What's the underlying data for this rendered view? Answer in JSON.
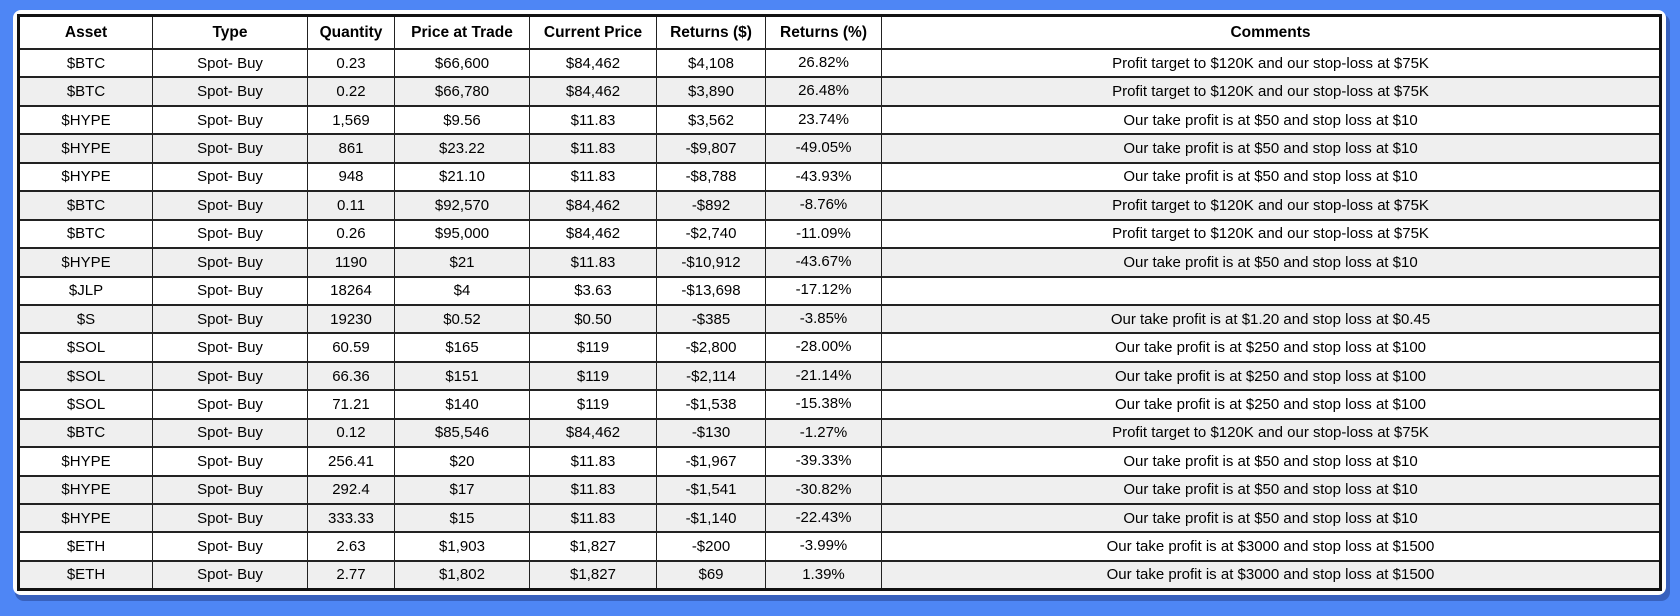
{
  "colors": {
    "frame_blue": "#4e86f5",
    "row_shade": "#efefef",
    "row_white": "#ffffff",
    "grid_line": "#222222",
    "text": "#000000"
  },
  "table": {
    "columns": [
      {
        "key": "asset",
        "label": "Asset"
      },
      {
        "key": "type",
        "label": "Type"
      },
      {
        "key": "quantity",
        "label": "Quantity"
      },
      {
        "key": "price_at_trade",
        "label": "Price at Trade"
      },
      {
        "key": "current_price",
        "label": "Current Price"
      },
      {
        "key": "returns_usd",
        "label": "Returns ($)"
      },
      {
        "key": "returns_pct",
        "label": "Returns (%)"
      },
      {
        "key": "comments",
        "label": "Comments"
      }
    ],
    "rows": [
      {
        "asset": "$BTC",
        "type": "Spot- Buy",
        "quantity": "0.23",
        "price_at_trade": "$66,600",
        "current_price": "$84,462",
        "returns_usd": "$4,108",
        "returns_pct": "26.82%",
        "comments": "Profit target to $120K and our stop-loss at $75K",
        "shaded": false
      },
      {
        "asset": "$BTC",
        "type": "Spot- Buy",
        "quantity": "0.22",
        "price_at_trade": "$66,780",
        "current_price": "$84,462",
        "returns_usd": "$3,890",
        "returns_pct": "26.48%",
        "comments": "Profit target to $120K and our stop-loss at $75K",
        "shaded": true
      },
      {
        "asset": "$HYPE",
        "type": "Spot- Buy",
        "quantity": "1,569",
        "price_at_trade": "$9.56",
        "current_price": "$11.83",
        "returns_usd": "$3,562",
        "returns_pct": "23.74%",
        "comments": "Our take profit is at $50 and stop loss at $10",
        "shaded": false
      },
      {
        "asset": "$HYPE",
        "type": "Spot- Buy",
        "quantity": "861",
        "price_at_trade": "$23.22",
        "current_price": "$11.83",
        "returns_usd": "-$9,807",
        "returns_pct": "-49.05%",
        "comments": "Our take profit is at $50 and stop loss at $10",
        "shaded": true
      },
      {
        "asset": "$HYPE",
        "type": "Spot- Buy",
        "quantity": "948",
        "price_at_trade": "$21.10",
        "current_price": "$11.83",
        "returns_usd": "-$8,788",
        "returns_pct": "-43.93%",
        "comments": "Our take profit is at $50 and stop loss at $10",
        "shaded": false
      },
      {
        "asset": "$BTC",
        "type": "Spot- Buy",
        "quantity": "0.11",
        "price_at_trade": "$92,570",
        "current_price": "$84,462",
        "returns_usd": "-$892",
        "returns_pct": "-8.76%",
        "comments": "Profit target to $120K and our stop-loss at $75K",
        "shaded": true
      },
      {
        "asset": "$BTC",
        "type": "Spot- Buy",
        "quantity": "0.26",
        "price_at_trade": "$95,000",
        "current_price": "$84,462",
        "returns_usd": "-$2,740",
        "returns_pct": "-11.09%",
        "comments": "Profit target to $120K and our stop-loss at $75K",
        "shaded": false
      },
      {
        "asset": "$HYPE",
        "type": "Spot- Buy",
        "quantity": "1190",
        "price_at_trade": "$21",
        "current_price": "$11.83",
        "returns_usd": "-$10,912",
        "returns_pct": "-43.67%",
        "comments": "Our take profit is at $50 and stop loss at $10",
        "shaded": true
      },
      {
        "asset": "$JLP",
        "type": "Spot- Buy",
        "quantity": "18264",
        "price_at_trade": "$4",
        "current_price": "$3.63",
        "returns_usd": "-$13,698",
        "returns_pct": "-17.12%",
        "comments": "",
        "shaded": false
      },
      {
        "asset": "$S",
        "type": "Spot- Buy",
        "quantity": "19230",
        "price_at_trade": "$0.52",
        "current_price": "$0.50",
        "returns_usd": "-$385",
        "returns_pct": "-3.85%",
        "comments": "Our take profit is at $1.20 and stop loss at $0.45",
        "shaded": true
      },
      {
        "asset": "$SOL",
        "type": "Spot- Buy",
        "quantity": "60.59",
        "price_at_trade": "$165",
        "current_price": "$119",
        "returns_usd": "-$2,800",
        "returns_pct": "-28.00%",
        "comments": "Our take profit is at $250 and stop loss at $100",
        "shaded": false
      },
      {
        "asset": "$SOL",
        "type": "Spot- Buy",
        "quantity": "66.36",
        "price_at_trade": "$151",
        "current_price": "$119",
        "returns_usd": "-$2,114",
        "returns_pct": "-21.14%",
        "comments": "Our take profit is at $250 and stop loss at $100",
        "shaded": true
      },
      {
        "asset": "$SOL",
        "type": "Spot- Buy",
        "quantity": "71.21",
        "price_at_trade": "$140",
        "current_price": "$119",
        "returns_usd": "-$1,538",
        "returns_pct": "-15.38%",
        "comments": "Our take profit is at $250 and stop loss at $100",
        "shaded": false
      },
      {
        "asset": "$BTC",
        "type": "Spot- Buy",
        "quantity": "0.12",
        "price_at_trade": "$85,546",
        "current_price": "$84,462",
        "returns_usd": "-$130",
        "returns_pct": "-1.27%",
        "comments": "Profit target to $120K and our stop-loss at $75K",
        "shaded": true
      },
      {
        "asset": "$HYPE",
        "type": "Spot- Buy",
        "quantity": "256.41",
        "price_at_trade": "$20",
        "current_price": "$11.83",
        "returns_usd": "-$1,967",
        "returns_pct": "-39.33%",
        "comments": "Our take profit is at $50 and stop loss at $10",
        "shaded": false
      },
      {
        "asset": "$HYPE",
        "type": "Spot- Buy",
        "quantity": "292.4",
        "price_at_trade": "$17",
        "current_price": "$11.83",
        "returns_usd": "-$1,541",
        "returns_pct": "-30.82%",
        "comments": "Our take profit is at $50 and stop loss at $10",
        "shaded": true
      },
      {
        "asset": "$HYPE",
        "type": "Spot- Buy",
        "quantity": "333.33",
        "price_at_trade": "$15",
        "current_price": "$11.83",
        "returns_usd": "-$1,140",
        "returns_pct": "-22.43%",
        "comments": "Our take profit is at $50 and stop loss at $10",
        "shaded": true
      },
      {
        "asset": "$ETH",
        "type": "Spot- Buy",
        "quantity": "2.63",
        "price_at_trade": "$1,903",
        "current_price": "$1,827",
        "returns_usd": "-$200",
        "returns_pct": "-3.99%",
        "comments": "Our take profit is at $3000 and stop loss at $1500",
        "shaded": false
      },
      {
        "asset": "$ETH",
        "type": "Spot- Buy",
        "quantity": "2.77",
        "price_at_trade": "$1,802",
        "current_price": "$1,827",
        "returns_usd": "$69",
        "returns_pct": "1.39%",
        "comments": "Our take profit is at $3000 and stop loss at $1500",
        "shaded": true
      }
    ]
  }
}
